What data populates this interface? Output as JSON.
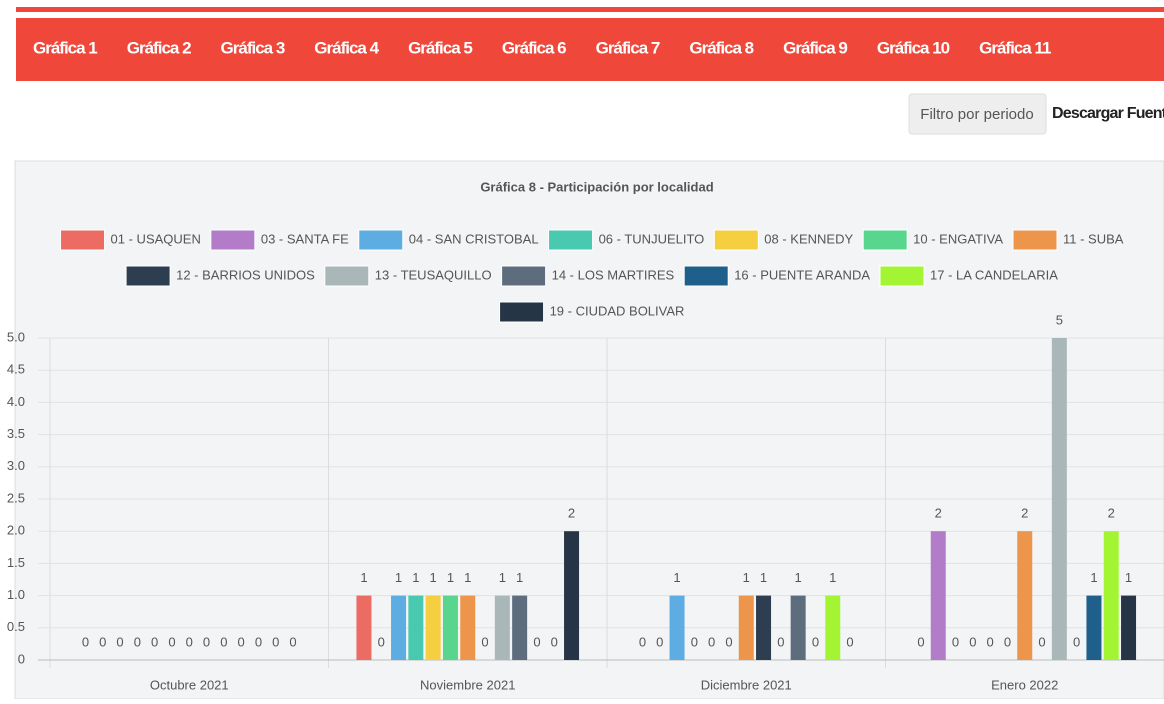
{
  "nav": {
    "tabs": [
      "Gráfica 1",
      "Gráfica 2",
      "Gráfica 3",
      "Gráfica 4",
      "Gráfica 5",
      "Gráfica 6",
      "Gráfica 7",
      "Gráfica 8",
      "Gráfica 9",
      "Gráfica 10",
      "Gráfica 11"
    ]
  },
  "toolbar": {
    "filter": "Filtro por periodo",
    "download": "Descargar Fuente"
  },
  "chart_data": {
    "type": "bar",
    "title": "Gráfica 8 - Participación por localidad",
    "categories": [
      "Octubre 2021",
      "Noviembre 2021",
      "Diciembre 2021",
      "Enero 2022"
    ],
    "series": [
      {
        "name": "01 - USAQUEN",
        "color": "#ec6b63",
        "values": [
          0,
          1,
          0,
          0
        ]
      },
      {
        "name": "03 - SANTA FE",
        "color": "#b27cc9",
        "values": [
          0,
          0,
          0,
          2
        ]
      },
      {
        "name": "04 - SAN CRISTOBAL",
        "color": "#5dade2",
        "values": [
          0,
          1,
          1,
          0
        ]
      },
      {
        "name": "06 - TUNJUELITO",
        "color": "#48c9b0",
        "values": [
          0,
          1,
          0,
          0
        ]
      },
      {
        "name": "08 - KENNEDY",
        "color": "#f5cf3f",
        "values": [
          0,
          1,
          0,
          0
        ]
      },
      {
        "name": "10 - ENGATIVA",
        "color": "#58d68d",
        "values": [
          0,
          1,
          0,
          0
        ]
      },
      {
        "name": "11 - SUBA",
        "color": "#ee954c",
        "values": [
          0,
          1,
          1,
          2
        ]
      },
      {
        "name": "12 - BARRIOS UNIDOS",
        "color": "#2c3e50",
        "values": [
          0,
          0,
          1,
          0
        ]
      },
      {
        "name": "13 - TEUSAQUILLO",
        "color": "#aab7b8",
        "values": [
          0,
          1,
          0,
          5
        ]
      },
      {
        "name": "14 - LOS MARTIRES",
        "color": "#5d6d7e",
        "values": [
          0,
          1,
          1,
          0
        ]
      },
      {
        "name": "16 - PUENTE ARANDA",
        "color": "#1f5f8b",
        "values": [
          0,
          0,
          0,
          1
        ]
      },
      {
        "name": "17 - LA CANDELARIA",
        "color": "#a3f533",
        "values": [
          0,
          0,
          1,
          2
        ]
      },
      {
        "name": "19 - CIUDAD BOLIVAR",
        "color": "#263545",
        "values": [
          0,
          2,
          0,
          1
        ]
      }
    ],
    "ylim": [
      0,
      5
    ],
    "yticks": [
      0,
      0.5,
      {
        "value": 1,
        "label": "1.0"
      },
      1.5,
      {
        "value": 2,
        "label": "2.0"
      },
      2.5,
      {
        "value": 3,
        "label": "3.0"
      },
      3.5,
      {
        "value": 4,
        "label": "4.0"
      },
      4.5,
      {
        "value": 5,
        "label": "5.0"
      }
    ],
    "grid": true
  }
}
